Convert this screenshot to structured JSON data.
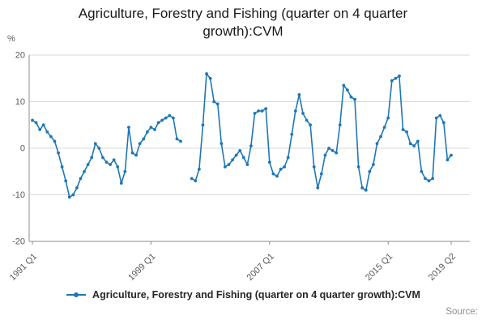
{
  "title": "Agriculture, Forestry and Fishing (quarter on 4 quarter growth):CVM",
  "legend": {
    "label": "Agriculture, Forestry and Fishing (quarter on 4 quarter growth):CVM"
  },
  "source_label": "Source:",
  "chart_data": {
    "type": "line",
    "title": "Agriculture, Forestry and Fishing (quarter on 4 quarter growth):CVM",
    "xlabel": "",
    "ylabel": "%",
    "ylim": [
      -20,
      20
    ],
    "y_ticks": [
      20,
      10,
      0,
      -10,
      -20
    ],
    "grid": true,
    "legend_position": "bottom",
    "line_color": "#1f77b4",
    "marker": "dot",
    "frequency": "quarterly",
    "start_period": "1991 Q1",
    "end_period": "2019 Q2",
    "x_ticks": [
      {
        "index": 0,
        "label": "1991 Q1"
      },
      {
        "index": 32,
        "label": "1999 Q1"
      },
      {
        "index": 64,
        "label": "2007 Q1"
      },
      {
        "index": 96,
        "label": "2015 Q1"
      },
      {
        "index": 113,
        "label": "2019 Q2"
      }
    ],
    "values": [
      6,
      5.5,
      4,
      5,
      3.5,
      2.5,
      1.5,
      -1,
      -4,
      -7,
      -10.5,
      -10,
      -8.5,
      -6.5,
      -5,
      -3.5,
      -2,
      1,
      0,
      -2,
      -3,
      -3.5,
      -2.5,
      -4,
      -7.5,
      -5,
      4.5,
      -1,
      -1.5,
      1,
      2,
      3.5,
      4.5,
      4,
      5.5,
      6,
      6.5,
      7,
      6.5,
      2,
      1.5,
      null,
      null,
      -6.5,
      -7,
      -4.5,
      5,
      16,
      15,
      10,
      9.5,
      1,
      -4,
      -3.5,
      -2.5,
      -1.5,
      -0.5,
      -2,
      -3.5,
      0.5,
      7.5,
      8,
      8,
      8.5,
      -3,
      -5.5,
      -6,
      -4.5,
      -4,
      -2,
      3,
      8,
      11.5,
      7.5,
      6,
      5,
      -4,
      -8.5,
      -5.5,
      -1.5,
      0,
      -0.5,
      -1,
      5,
      13.5,
      12.5,
      11,
      10.5,
      -4,
      -8.5,
      -9,
      -5,
      -3.5,
      1,
      2.5,
      4.5,
      6.5,
      14.5,
      15,
      15.5,
      4,
      3.5,
      1,
      0.5,
      1.5,
      -5,
      -6.5,
      -7,
      -6.5,
      6.5,
      7,
      5.5,
      -2.5,
      -1.5
    ]
  }
}
